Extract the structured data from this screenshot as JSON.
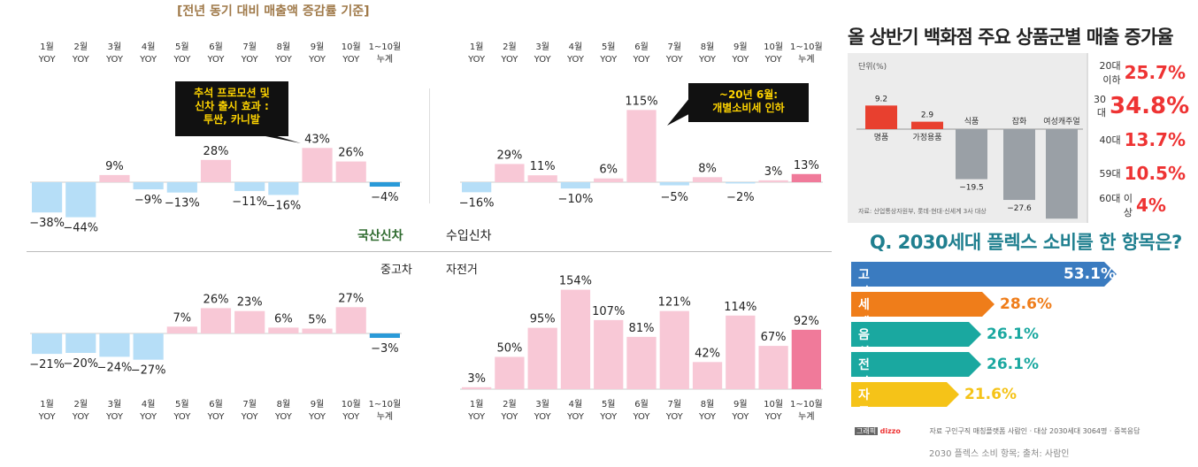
{
  "main_title": "[전년 동기 대비 매출액 증감률 기준]",
  "colors": {
    "pos": "#f8c8d6",
    "neg": "#b6def7",
    "total_pos": "#f07a9a",
    "total_neg": "#2a9ad8"
  },
  "chart_data": [
    {
      "type": "bar",
      "title": "국산신차",
      "categories": [
        "1월 YOY",
        "2월 YOY",
        "3월 YOY",
        "4월 YOY",
        "5월 YOY",
        "6월 YOY",
        "7월 YOY",
        "8월 YOY",
        "9월 YOY",
        "10월 YOY",
        "1~10월 누계"
      ],
      "values": [
        -38,
        -44,
        9,
        -9,
        -13,
        28,
        -11,
        -16,
        43,
        26,
        -4
      ],
      "annotation": "추석 프로모션 및 신차 출시 효과 : 투싼, 카니발"
    },
    {
      "type": "bar",
      "title": "수입신차",
      "categories": [
        "1월 YOY",
        "2월 YOY",
        "3월 YOY",
        "4월 YOY",
        "5월 YOY",
        "6월 YOY",
        "7월 YOY",
        "8월 YOY",
        "9월 YOY",
        "10월 YOY",
        "1~10월 누계"
      ],
      "values": [
        -16,
        29,
        11,
        -10,
        6,
        115,
        -5,
        8,
        -2,
        3,
        13
      ],
      "annotation": "~20년 6월: 개별소비세 인하"
    },
    {
      "type": "bar",
      "title": "중고차",
      "categories": [
        "1월 YOY",
        "2월 YOY",
        "3월 YOY",
        "4월 YOY",
        "5월 YOY",
        "6월 YOY",
        "7월 YOY",
        "8월 YOY",
        "9월 YOY",
        "10월 YOY",
        "1~10월 누계"
      ],
      "values": [
        -21,
        -20,
        -24,
        -27,
        7,
        26,
        23,
        6,
        5,
        27,
        -3
      ]
    },
    {
      "type": "bar",
      "title": "자전거",
      "categories": [
        "1월 YOY",
        "2월 YOY",
        "3월 YOY",
        "4월 YOY",
        "5월 YOY",
        "6월 YOY",
        "7월 YOY",
        "8월 YOY",
        "9월 YOY",
        "10월 YOY",
        "1~10월 누계"
      ],
      "values": [
        3,
        50,
        95,
        154,
        107,
        81,
        121,
        42,
        114,
        67,
        92
      ]
    },
    {
      "type": "bar",
      "title": "올 상반기 백화점 주요 상품군별 매출 증가율",
      "unit": "단위(%)",
      "categories": [
        "명품",
        "가정용품",
        "식품",
        "잡화",
        "여성캐주얼"
      ],
      "values": [
        9.2,
        2.9,
        -19.5,
        -27.6,
        -34.9
      ],
      "source": "자료: 산업통상자원부, 롯데·현대·신세계 3사 대상",
      "age_breakdown": [
        {
          "label": "20대 이하",
          "value": "25.7%"
        },
        {
          "label": "30대",
          "value": "34.8%"
        },
        {
          "label": "40대",
          "value": "13.7%"
        },
        {
          "label": "59대",
          "value": "10.5%"
        },
        {
          "label": "60대 이상",
          "value": "4%"
        }
      ]
    },
    {
      "type": "bar",
      "title": "Q. 2030세대 플렉스 소비를 한 항목은?",
      "categories": [
        "고가의 명품",
        "세계 여행",
        "음식",
        "전자기기",
        "자동차"
      ],
      "values": [
        53.1,
        28.6,
        26.1,
        26.1,
        21.6
      ],
      "display_values": [
        "53.1%",
        "28.6%",
        "26.1%",
        "26.1%",
        "21.6%"
      ],
      "colors": [
        "#3a7bc0",
        "#ef7d1a",
        "#1aa8a0",
        "#1aa8a0",
        "#f5c318"
      ],
      "value_colors": [
        "#ffffff",
        "#ef7d1a",
        "#1aa8a0",
        "#1aa8a0",
        "#f5c318"
      ],
      "source": "자료 구인구직 매칭플랫폼 사람인 · 대상 2030세대 3064명 · 중복응답",
      "brand": "dizzo",
      "caption": "2030 플렉스 소비 항목; 출처: 사람인"
    }
  ]
}
